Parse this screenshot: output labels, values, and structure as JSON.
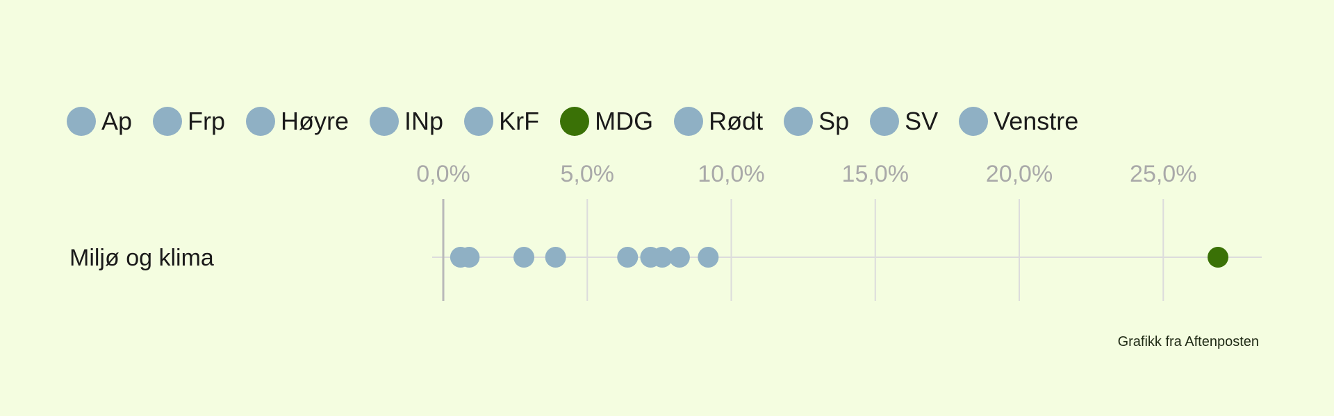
{
  "legend": [
    {
      "label": "Ap",
      "color": "#8fb0c4"
    },
    {
      "label": "Frp",
      "color": "#8fb0c4"
    },
    {
      "label": "Høyre",
      "color": "#8fb0c4"
    },
    {
      "label": "INp",
      "color": "#8fb0c4"
    },
    {
      "label": "KrF",
      "color": "#8fb0c4"
    },
    {
      "label": "MDG",
      "color": "#3a7106"
    },
    {
      "label": "Rødt",
      "color": "#8fb0c4"
    },
    {
      "label": "Sp",
      "color": "#8fb0c4"
    },
    {
      "label": "SV",
      "color": "#8fb0c4"
    },
    {
      "label": "Venstre",
      "color": "#8fb0c4"
    }
  ],
  "credit": "Grafikk fra Aftenposten",
  "chart_data": {
    "type": "scatter",
    "categories": [
      "Miljø og klima"
    ],
    "x_ticks": [
      0,
      5,
      10,
      15,
      20,
      25
    ],
    "x_tick_labels": [
      "0,0%",
      "5,0%",
      "10,0%",
      "15,0%",
      "20,0%",
      "25,0%"
    ],
    "xlim": [
      0,
      28
    ],
    "grid": true,
    "legend_position": "top",
    "default_color": "#8fb0c4",
    "highlight_color": "#3a7106",
    "series": [
      {
        "name": "Ap",
        "values": [
          7.6
        ],
        "color": "#8fb0c4"
      },
      {
        "name": "Frp",
        "values": [
          0.6
        ],
        "color": "#8fb0c4"
      },
      {
        "name": "Høyre",
        "values": [
          3.9
        ],
        "color": "#8fb0c4"
      },
      {
        "name": "INp",
        "values": [
          0.9
        ],
        "color": "#8fb0c4"
      },
      {
        "name": "KrF",
        "values": [
          2.8
        ],
        "color": "#8fb0c4"
      },
      {
        "name": "MDG",
        "values": [
          26.9
        ],
        "color": "#3a7106"
      },
      {
        "name": "Rødt",
        "values": [
          8.2
        ],
        "color": "#8fb0c4"
      },
      {
        "name": "Sp",
        "values": [
          6.4
        ],
        "color": "#8fb0c4"
      },
      {
        "name": "SV",
        "values": [
          9.2
        ],
        "color": "#8fb0c4"
      },
      {
        "name": "Venstre",
        "values": [
          7.2
        ],
        "color": "#8fb0c4"
      }
    ]
  }
}
